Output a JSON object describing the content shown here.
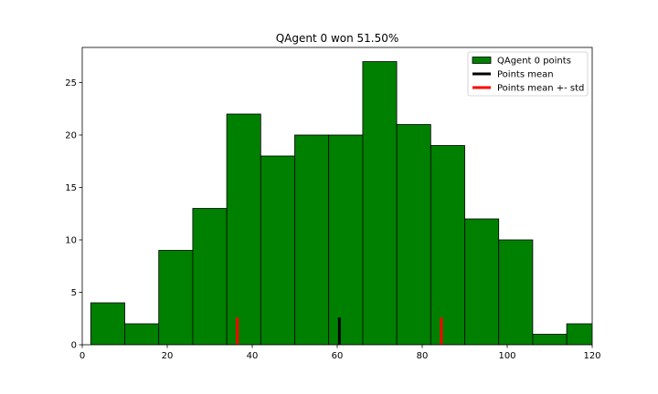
{
  "chart_data": {
    "type": "bar",
    "title": "QAgent 0 won 51.50%",
    "xlabel": "",
    "ylabel": "",
    "xlim": [
      0,
      120
    ],
    "ylim": [
      0,
      28.35
    ],
    "xticks": [
      0,
      20,
      40,
      60,
      80,
      100,
      120
    ],
    "yticks": [
      0,
      5,
      10,
      15,
      20,
      25
    ],
    "grid": false,
    "legend_placement": "top-right",
    "bin_edges": [
      2,
      10,
      18,
      26,
      34,
      42,
      50,
      58,
      66,
      74,
      82,
      90,
      98,
      106,
      114,
      122
    ],
    "series": [
      {
        "name": "QAgent 0 points",
        "values": [
          4,
          2,
          9,
          13,
          22,
          18,
          20,
          20,
          27,
          21,
          19,
          12,
          10,
          1,
          2
        ],
        "color": "#008000",
        "edge_color": "#000000"
      }
    ],
    "reference_lines": [
      {
        "name": "Points mean",
        "x": 60.5,
        "height": 2.6,
        "color": "#000000"
      },
      {
        "name": "Points mean +- std",
        "x": 36.5,
        "height": 2.6,
        "color": "#ff0000"
      },
      {
        "name": "Points mean +- std",
        "x": 84.5,
        "height": 2.6,
        "color": "#ff0000"
      }
    ],
    "legend": [
      {
        "label": "QAgent 0 points",
        "kind": "patch",
        "color": "#008000"
      },
      {
        "label": "Points mean",
        "kind": "line",
        "color": "#000000"
      },
      {
        "label": "Points mean +- std",
        "kind": "line",
        "color": "#ff0000"
      }
    ]
  }
}
